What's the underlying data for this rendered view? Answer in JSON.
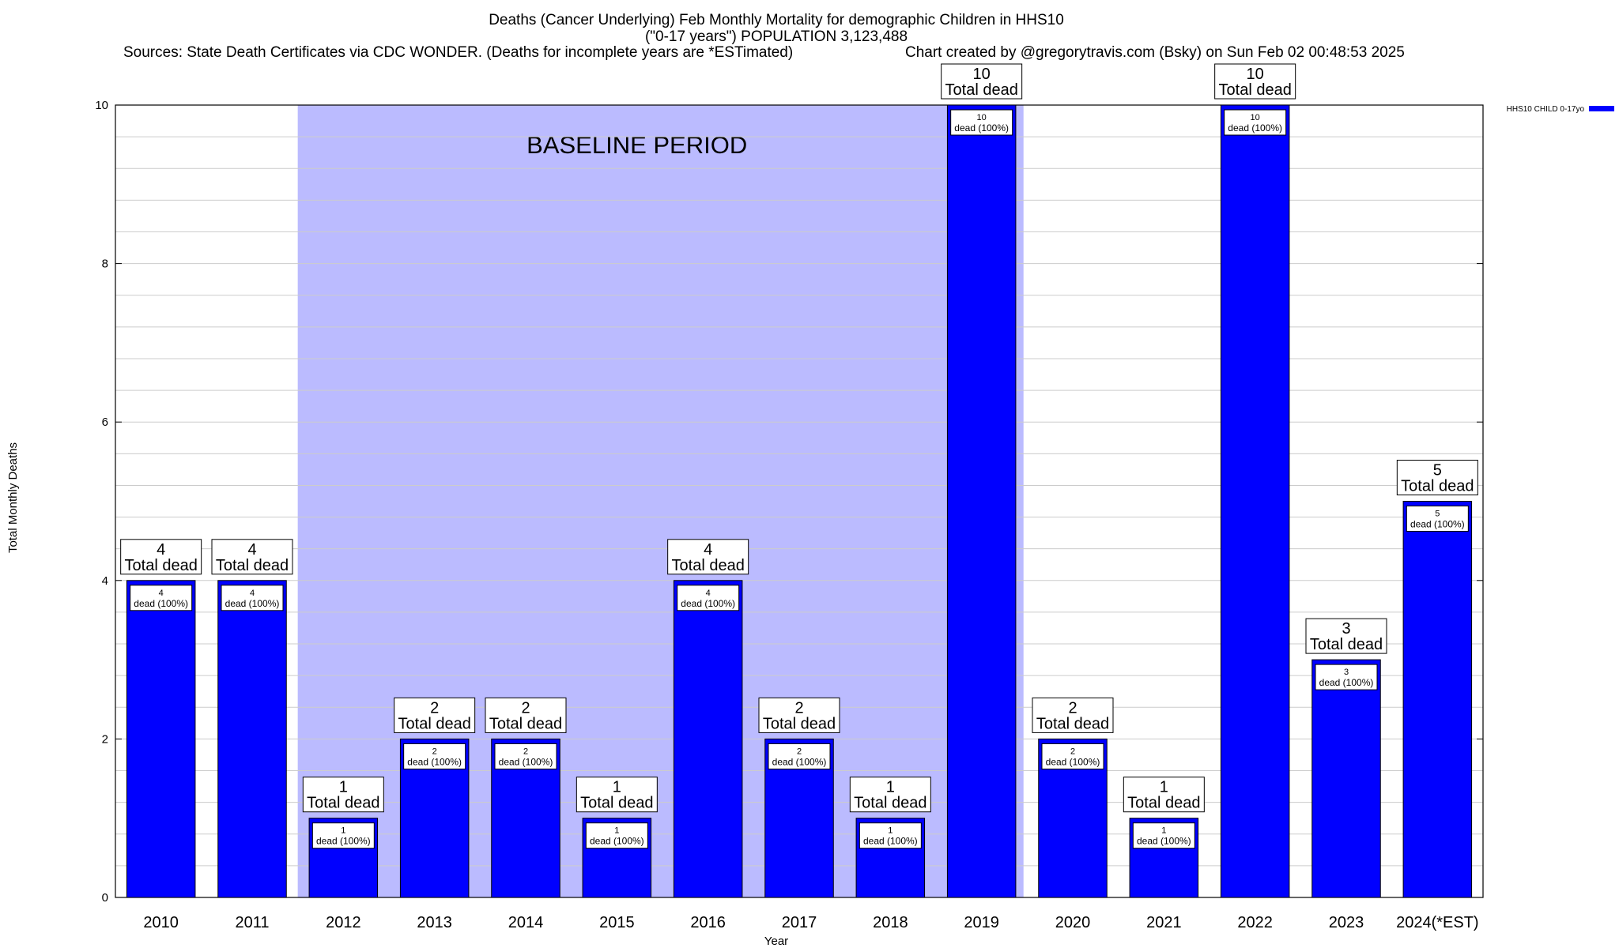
{
  "header": {
    "title_line1": "Deaths (Cancer Underlying) Feb Monthly Mortality for demographic Children in HHS10",
    "title_line2": "(\"0-17 years\") POPULATION 3,123,488",
    "sources": "Sources: State Death Certificates via CDC WONDER. (Deaths for incomplete years are *ESTimated)",
    "credit": "Chart created by @gregorytravis.com (Bsky) on Sun Feb 02 00:48:53 2025"
  },
  "colors": {
    "bar": "#0000ff",
    "baseline_band": "#bbbbff",
    "grid": "#cccccc"
  },
  "chart_data": {
    "type": "bar",
    "categories": [
      "2010",
      "2011",
      "2012",
      "2013",
      "2014",
      "2015",
      "2016",
      "2017",
      "2018",
      "2019",
      "2020",
      "2021",
      "2022",
      "2023",
      "2024(*EST)"
    ],
    "series": [
      {
        "name": "HHS10 CHILD 0-17yo",
        "values": [
          4,
          4,
          1,
          2,
          2,
          1,
          4,
          2,
          1,
          10,
          2,
          1,
          10,
          3,
          5
        ]
      }
    ],
    "total_labels": [
      "4",
      "4",
      "1",
      "2",
      "2",
      "1",
      "4",
      "2",
      "1",
      "10",
      "2",
      "1",
      "10",
      "3",
      "5"
    ],
    "total_label_suffix": "Total dead",
    "inner_labels": [
      "dead (100%)",
      "dead (100%)",
      "dead (100%)",
      "dead (100%)",
      "dead (100%)",
      "dead (100%)",
      "dead (100%)",
      "dead (100%)",
      "dead (100%)",
      "dead (100%)",
      "dead (100%)",
      "dead (100%)",
      "dead (100%)",
      "dead (100%)",
      "dead (100%)"
    ],
    "xlabel": "Year",
    "ylabel": "Total Monthly Deaths",
    "ylim": [
      0,
      10
    ],
    "yticks": [
      0,
      2,
      4,
      6,
      8,
      10
    ],
    "grid": true,
    "legend": {
      "position": "top-right",
      "label": "HHS10 CHILD 0-17yo"
    },
    "baseline": {
      "label": "BASELINE PERIOD",
      "start": "2012",
      "end": "2019"
    }
  }
}
